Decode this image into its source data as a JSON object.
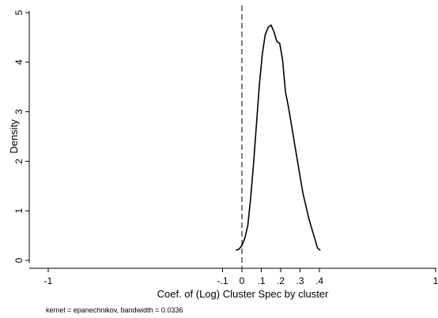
{
  "chart_data": {
    "type": "line",
    "title": "",
    "xlabel": "Coef. of (Log) Cluster Spec  by cluster",
    "ylabel": "Density",
    "note": "kernel = epanechnikov, bandwidth = 0.0336",
    "xlim": [
      -1,
      1
    ],
    "ylim": [
      0,
      5
    ],
    "x_ticks": [
      -1,
      -0.1,
      0,
      0.1,
      0.2,
      0.3,
      0.4,
      1
    ],
    "x_tick_labels": [
      "-1",
      "-.1",
      "0",
      ".1",
      ".2",
      ".3",
      ".4",
      "1"
    ],
    "y_ticks": [
      0,
      1,
      2,
      3,
      4,
      5
    ],
    "y_tick_labels": [
      "0",
      "1",
      "2",
      "3",
      "4",
      "5"
    ],
    "grid": false,
    "reference_line": {
      "x": 0,
      "style": "dashed"
    },
    "series": [
      {
        "x": [
          -0.03,
          -0.015,
          0,
          0.015,
          0.03,
          0.045,
          0.06,
          0.075,
          0.09,
          0.105,
          0.12,
          0.135,
          0.15,
          0.165,
          0.18,
          0.195,
          0.21,
          0.225,
          0.24,
          0.255,
          0.27,
          0.285,
          0.3,
          0.315,
          0.33,
          0.345,
          0.36,
          0.375,
          0.39,
          0.405
        ],
        "y": [
          0.2,
          0.23,
          0.3,
          0.45,
          0.7,
          1.25,
          1.95,
          2.75,
          3.55,
          4.15,
          4.55,
          4.7,
          4.75,
          4.62,
          4.42,
          4.38,
          4.05,
          3.4,
          3.1,
          2.75,
          2.4,
          2.05,
          1.7,
          1.35,
          1.1,
          0.85,
          0.65,
          0.45,
          0.25,
          0.2
        ]
      }
    ]
  }
}
